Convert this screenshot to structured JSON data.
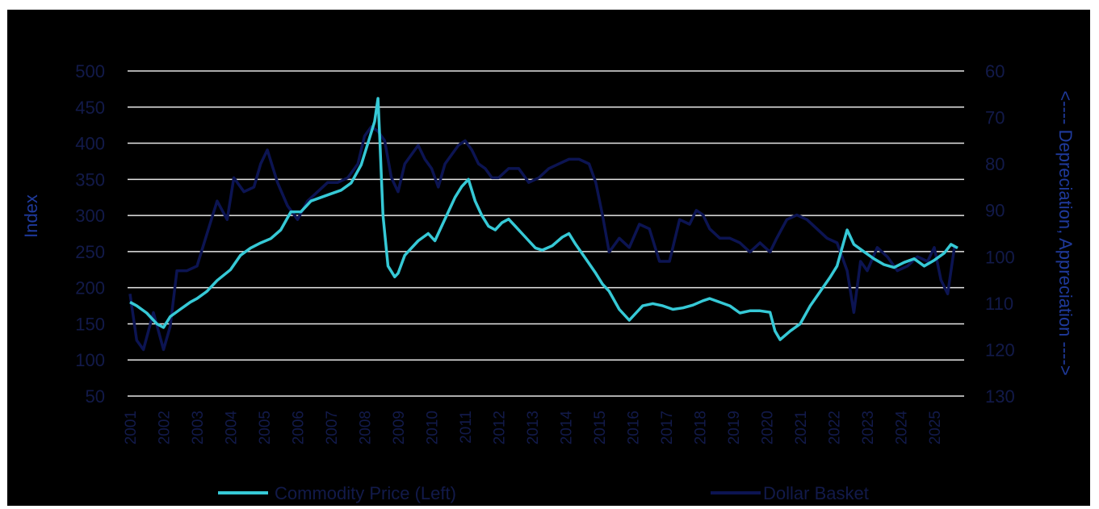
{
  "chart_data": {
    "type": "line",
    "title": "",
    "ylabel": "Index",
    "y2label": "<---- Depreciation, Appreciation ---->",
    "ylim": [
      50,
      500
    ],
    "y2lim": [
      60,
      130
    ],
    "y2_inverted": true,
    "yticks": [
      "500",
      "450",
      "400",
      "350",
      "300",
      "250",
      "200",
      "150",
      "100",
      "50"
    ],
    "y2ticks": [
      "60",
      "70",
      "80",
      "90",
      "100",
      "110",
      "120",
      "130"
    ],
    "xticks": [
      "2001",
      "2002",
      "2003",
      "2004",
      "2005",
      "2006",
      "2007",
      "2008",
      "2009",
      "2010",
      "2011",
      "2012",
      "2013",
      "2014",
      "2015",
      "2016",
      "2017",
      "2018",
      "2019",
      "2020",
      "2021",
      "2022",
      "2023",
      "2024",
      "2025"
    ],
    "xlim": [
      2001.0,
      2025.7
    ],
    "grid": true,
    "legend_position": "bottom",
    "series": [
      {
        "name": "Commodity Price (Left)",
        "axis": "left",
        "color": "#36c9d6",
        "x": [
          2001.0,
          2001.2,
          2001.5,
          2001.8,
          2002.0,
          2002.2,
          2002.5,
          2002.8,
          2003.0,
          2003.3,
          2003.6,
          2004.0,
          2004.3,
          2004.6,
          2004.9,
          2005.2,
          2005.5,
          2005.8,
          2006.1,
          2006.4,
          2006.7,
          2007.0,
          2007.3,
          2007.6,
          2007.9,
          2008.1,
          2008.3,
          2008.4,
          2008.45,
          2008.55,
          2008.7,
          2008.9,
          2009.0,
          2009.2,
          2009.4,
          2009.6,
          2009.9,
          2010.1,
          2010.3,
          2010.5,
          2010.7,
          2010.9,
          2011.1,
          2011.3,
          2011.5,
          2011.7,
          2011.9,
          2012.1,
          2012.3,
          2012.5,
          2012.7,
          2012.9,
          2013.1,
          2013.3,
          2013.6,
          2013.9,
          2014.1,
          2014.3,
          2014.6,
          2014.9,
          2015.1,
          2015.3,
          2015.6,
          2015.9,
          2016.1,
          2016.3,
          2016.6,
          2016.9,
          2017.2,
          2017.5,
          2017.8,
          2018.1,
          2018.3,
          2018.6,
          2018.9,
          2019.2,
          2019.5,
          2019.8,
          2020.1,
          2020.25,
          2020.4,
          2020.7,
          2021.0,
          2021.3,
          2021.6,
          2021.9,
          2022.1,
          2022.25,
          2022.4,
          2022.6,
          2022.9,
          2023.2,
          2023.5,
          2023.8,
          2024.1,
          2024.4,
          2024.7,
          2025.0,
          2025.3,
          2025.5,
          2025.7
        ],
        "values": [
          180,
          175,
          165,
          150,
          145,
          160,
          170,
          180,
          185,
          195,
          210,
          225,
          245,
          255,
          262,
          268,
          280,
          305,
          305,
          320,
          325,
          330,
          335,
          345,
          370,
          400,
          430,
          462,
          410,
          300,
          230,
          215,
          220,
          245,
          255,
          265,
          275,
          265,
          285,
          305,
          325,
          340,
          350,
          320,
          300,
          285,
          280,
          290,
          295,
          285,
          275,
          265,
          255,
          252,
          258,
          270,
          275,
          260,
          240,
          220,
          205,
          195,
          170,
          155,
          165,
          175,
          178,
          175,
          170,
          172,
          176,
          182,
          185,
          180,
          175,
          165,
          168,
          168,
          166,
          140,
          128,
          140,
          150,
          175,
          195,
          215,
          230,
          255,
          280,
          260,
          250,
          240,
          232,
          228,
          235,
          240,
          230,
          238,
          248,
          260,
          255
        ]
      },
      {
        "name": "Dollar Basket",
        "axis": "right",
        "color": "#0c1452",
        "x": [
          2001.0,
          2001.2,
          2001.4,
          2001.7,
          2002.0,
          2002.2,
          2002.4,
          2002.7,
          2003.0,
          2003.3,
          2003.6,
          2003.9,
          2004.1,
          2004.4,
          2004.7,
          2004.9,
          2005.1,
          2005.4,
          2005.7,
          2006.0,
          2006.3,
          2006.6,
          2006.9,
          2007.2,
          2007.5,
          2007.8,
          2008.0,
          2008.2,
          2008.4,
          2008.6,
          2008.8,
          2009.0,
          2009.2,
          2009.4,
          2009.6,
          2009.8,
          2010.0,
          2010.2,
          2010.4,
          2010.6,
          2010.8,
          2011.0,
          2011.2,
          2011.4,
          2011.6,
          2011.8,
          2012.0,
          2012.3,
          2012.6,
          2012.9,
          2013.2,
          2013.5,
          2013.8,
          2014.1,
          2014.4,
          2014.7,
          2014.9,
          2015.1,
          2015.3,
          2015.6,
          2015.9,
          2016.2,
          2016.5,
          2016.8,
          2017.1,
          2017.4,
          2017.7,
          2017.9,
          2018.1,
          2018.3,
          2018.6,
          2018.9,
          2019.2,
          2019.5,
          2019.8,
          2020.1,
          2020.3,
          2020.6,
          2020.9,
          2021.2,
          2021.5,
          2021.8,
          2022.1,
          2022.4,
          2022.6,
          2022.8,
          2023.0,
          2023.3,
          2023.6,
          2023.9,
          2024.2,
          2024.5,
          2024.8,
          2025.0,
          2025.2,
          2025.4,
          2025.6
        ],
        "values": [
          108,
          118,
          120,
          112,
          120,
          115,
          103,
          103,
          102,
          95,
          88,
          92,
          83,
          86,
          85,
          80,
          77,
          84,
          89,
          92,
          88,
          86,
          84,
          84,
          83,
          80,
          74,
          72,
          73,
          75,
          83,
          86,
          80,
          78,
          76,
          79,
          81,
          85,
          80,
          78,
          76,
          75,
          77,
          80,
          81,
          83,
          83,
          81,
          81,
          84,
          83,
          81,
          80,
          79,
          79,
          80,
          84,
          91,
          99,
          96,
          98,
          93,
          94,
          101,
          101,
          92,
          93,
          90,
          91,
          94,
          96,
          96,
          97,
          99,
          97,
          99,
          96,
          92,
          91,
          92,
          94,
          96,
          97,
          103,
          112,
          101,
          103,
          98,
          100,
          103,
          102,
          100,
          101,
          98,
          105,
          108,
          98
        ]
      }
    ]
  }
}
